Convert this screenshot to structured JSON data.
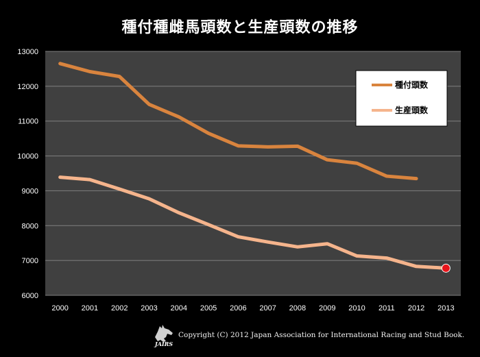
{
  "chart_data": {
    "type": "line",
    "title": "種付種雌馬頭数と生産頭数の推移",
    "xlabel": "",
    "ylabel": "",
    "ylim": [
      6000,
      13000
    ],
    "ytick_step": 1000,
    "grid": true,
    "legend_position": "top-right",
    "categories": [
      "2000",
      "2001",
      "2002",
      "2003",
      "2004",
      "2005",
      "2006",
      "2007",
      "2008",
      "2009",
      "2010",
      "2011",
      "2012",
      "2013"
    ],
    "series": [
      {
        "name": "種付頭数",
        "color": "#d9843e",
        "values": [
          12650,
          12420,
          12280,
          11480,
          11120,
          10650,
          10290,
          10260,
          10280,
          9890,
          9790,
          9420,
          9350,
          null
        ]
      },
      {
        "name": "生産頭数",
        "color": "#f5b48c",
        "values": [
          9390,
          9320,
          9050,
          8770,
          8370,
          8030,
          7680,
          7530,
          7390,
          7480,
          7130,
          7070,
          6830,
          6780
        ],
        "highlight_last": true,
        "highlight_color": "#e8141a"
      }
    ],
    "colors": {
      "background": "#000000",
      "plot_background": "#404040",
      "grid": "#808080"
    }
  },
  "footer": {
    "copyright": "Copyright (C) 2012 Japan Association for International Racing and Stud Book.",
    "logo_text": "JAIRS"
  }
}
